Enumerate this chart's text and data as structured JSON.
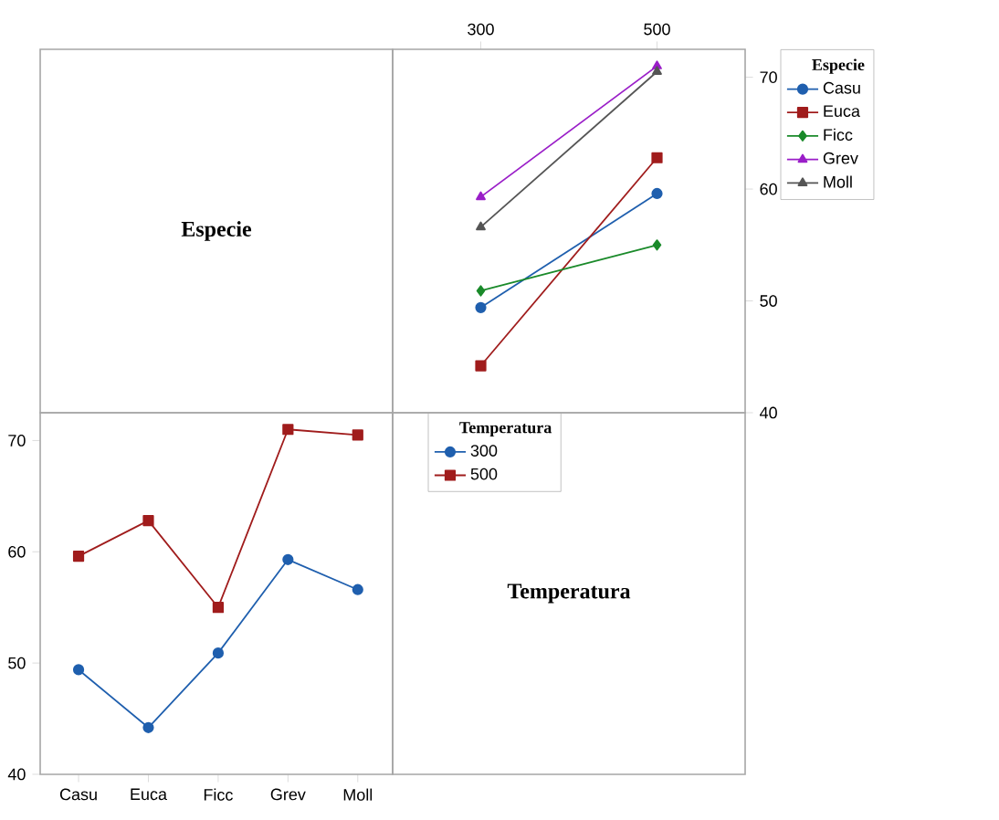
{
  "chart_data": [
    {
      "type": "other",
      "title": "Especie"
    },
    {
      "type": "line",
      "x": [
        300,
        500
      ],
      "xlim": [
        200,
        600
      ],
      "xticks": [
        300,
        500
      ],
      "ylim": [
        40,
        72.5
      ],
      "yticks": [
        40,
        50,
        60,
        70
      ],
      "legend": "right",
      "legend_title": "Especie",
      "series": [
        {
          "name": "Casu",
          "color": "#1f5fae",
          "marker": "circle",
          "values": [
            49.4,
            59.6
          ]
        },
        {
          "name": "Euca",
          "color": "#a01c1c",
          "marker": "square",
          "values": [
            44.2,
            62.8
          ]
        },
        {
          "name": "Ficc",
          "color": "#1a8a2a",
          "marker": "diamond",
          "values": [
            50.9,
            55.0
          ]
        },
        {
          "name": "Grev",
          "color": "#9a1ec8",
          "marker": "triangle",
          "values": [
            59.3,
            71.0
          ]
        },
        {
          "name": "Moll",
          "color": "#555555",
          "marker": "triangle",
          "values": [
            56.6,
            70.5
          ]
        }
      ]
    },
    {
      "type": "line",
      "categories": [
        "Casu",
        "Euca",
        "Ficc",
        "Grev",
        "Moll"
      ],
      "ylim": [
        40,
        72.5
      ],
      "yticks": [
        40,
        50,
        60,
        70
      ],
      "legend": "right",
      "legend_title": "Temperatura",
      "series": [
        {
          "name": "300",
          "color": "#1f5fae",
          "marker": "circle",
          "values": [
            49.4,
            44.2,
            50.9,
            59.3,
            56.6
          ]
        },
        {
          "name": "500",
          "color": "#a01c1c",
          "marker": "square",
          "values": [
            59.6,
            62.8,
            55.0,
            71.0,
            70.5
          ]
        }
      ]
    },
    {
      "type": "other",
      "title": "Temperatura"
    }
  ]
}
